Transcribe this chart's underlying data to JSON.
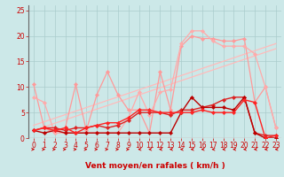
{
  "background_color": "#cce8e8",
  "grid_color": "#aacccc",
  "xlabel": "Vent moyen/en rafales ( km/h )",
  "xlabel_color": "#cc0000",
  "xlabel_fontsize": 6.5,
  "tick_color": "#cc0000",
  "tick_fontsize": 5.5,
  "ylim": [
    0,
    26
  ],
  "xlim": [
    -0.5,
    23.5
  ],
  "yticks": [
    0,
    5,
    10,
    15,
    20,
    25
  ],
  "xticks": [
    0,
    1,
    2,
    3,
    4,
    5,
    6,
    7,
    8,
    9,
    10,
    11,
    12,
    13,
    14,
    15,
    16,
    17,
    18,
    19,
    20,
    21,
    22,
    23
  ],
  "series": [
    {
      "x": [
        0,
        1,
        2,
        3,
        4,
        5,
        6,
        7,
        8,
        9,
        10,
        11,
        12,
        13,
        14,
        15,
        16,
        17,
        18,
        19,
        20,
        21,
        22,
        23
      ],
      "y": [
        10.5,
        2.0,
        1.0,
        2.0,
        10.5,
        1.5,
        8.5,
        13.0,
        8.5,
        5.5,
        5.5,
        1.0,
        13.0,
        5.5,
        18.0,
        20.0,
        19.5,
        19.5,
        19.0,
        19.0,
        19.5,
        7.0,
        10.0,
        2.0
      ],
      "color": "#ff9999",
      "lw": 0.9,
      "marker": "D",
      "ms": 2.2,
      "zorder": 3
    },
    {
      "x": [
        0,
        1,
        2,
        3,
        4,
        5,
        6,
        7,
        8,
        9,
        10,
        11,
        12,
        13,
        14,
        15,
        16,
        17,
        18,
        19,
        20,
        21,
        22,
        23
      ],
      "y": [
        8.0,
        7.0,
        1.0,
        1.0,
        1.0,
        1.0,
        1.0,
        1.0,
        1.0,
        4.0,
        9.0,
        4.5,
        9.0,
        9.5,
        18.5,
        21.0,
        21.0,
        19.0,
        18.0,
        18.0,
        18.0,
        16.5,
        10.0,
        2.0
      ],
      "color": "#ffaaaa",
      "lw": 0.9,
      "marker": "D",
      "ms": 2.2,
      "zorder": 3
    },
    {
      "x": [
        0,
        23
      ],
      "y": [
        1.5,
        17.5
      ],
      "color": "#ffbbbb",
      "lw": 0.9,
      "marker": null,
      "ms": 0,
      "zorder": 2
    },
    {
      "x": [
        0,
        23
      ],
      "y": [
        2.5,
        18.5
      ],
      "color": "#ffbbbb",
      "lw": 0.9,
      "marker": null,
      "ms": 0,
      "zorder": 2
    },
    {
      "x": [
        0,
        1,
        2,
        3,
        4,
        5,
        6,
        7,
        8,
        9,
        10,
        11,
        12,
        13,
        14,
        15,
        16,
        17,
        18,
        19,
        20,
        21,
        22,
        23
      ],
      "y": [
        1.5,
        2.0,
        2.0,
        1.5,
        2.0,
        2.0,
        2.5,
        2.0,
        2.5,
        3.5,
        5.0,
        5.0,
        5.0,
        4.5,
        5.5,
        5.5,
        6.0,
        6.5,
        7.5,
        8.0,
        8.0,
        1.0,
        0.5,
        0.5
      ],
      "color": "#dd2222",
      "lw": 1.0,
      "marker": "D",
      "ms": 2.2,
      "zorder": 5
    },
    {
      "x": [
        0,
        1,
        2,
        3,
        4,
        5,
        6,
        7,
        8,
        9,
        10,
        11,
        12,
        13,
        14,
        15,
        16,
        17,
        18,
        19,
        20,
        21,
        22,
        23
      ],
      "y": [
        1.5,
        1.0,
        1.5,
        1.0,
        1.0,
        1.0,
        1.0,
        1.0,
        1.0,
        1.0,
        1.0,
        1.0,
        1.0,
        1.0,
        5.0,
        8.0,
        6.0,
        6.0,
        6.0,
        5.5,
        8.0,
        1.0,
        0.0,
        0.0
      ],
      "color": "#bb0000",
      "lw": 1.0,
      "marker": "D",
      "ms": 2.2,
      "zorder": 5
    },
    {
      "x": [
        0,
        1,
        2,
        3,
        4,
        5,
        6,
        7,
        8,
        9,
        10,
        11,
        12,
        13,
        14,
        15,
        16,
        17,
        18,
        19,
        20,
        21,
        22,
        23
      ],
      "y": [
        1.5,
        2.0,
        1.5,
        2.0,
        1.0,
        2.0,
        2.5,
        3.0,
        3.0,
        4.0,
        5.5,
        5.5,
        5.0,
        5.0,
        5.0,
        5.0,
        5.5,
        5.0,
        5.0,
        5.0,
        7.5,
        7.0,
        0.0,
        0.5
      ],
      "color": "#ff2222",
      "lw": 1.0,
      "marker": "D",
      "ms": 2.2,
      "zorder": 6
    }
  ],
  "arrow_xs_right": [
    0,
    1,
    2,
    3,
    4,
    5,
    6,
    7,
    8,
    9
  ],
  "arrow_xs_left": [
    10,
    11,
    12,
    13,
    14,
    15,
    16,
    17,
    18,
    19,
    20,
    21,
    22,
    23
  ],
  "arrow_color": "#cc0000"
}
